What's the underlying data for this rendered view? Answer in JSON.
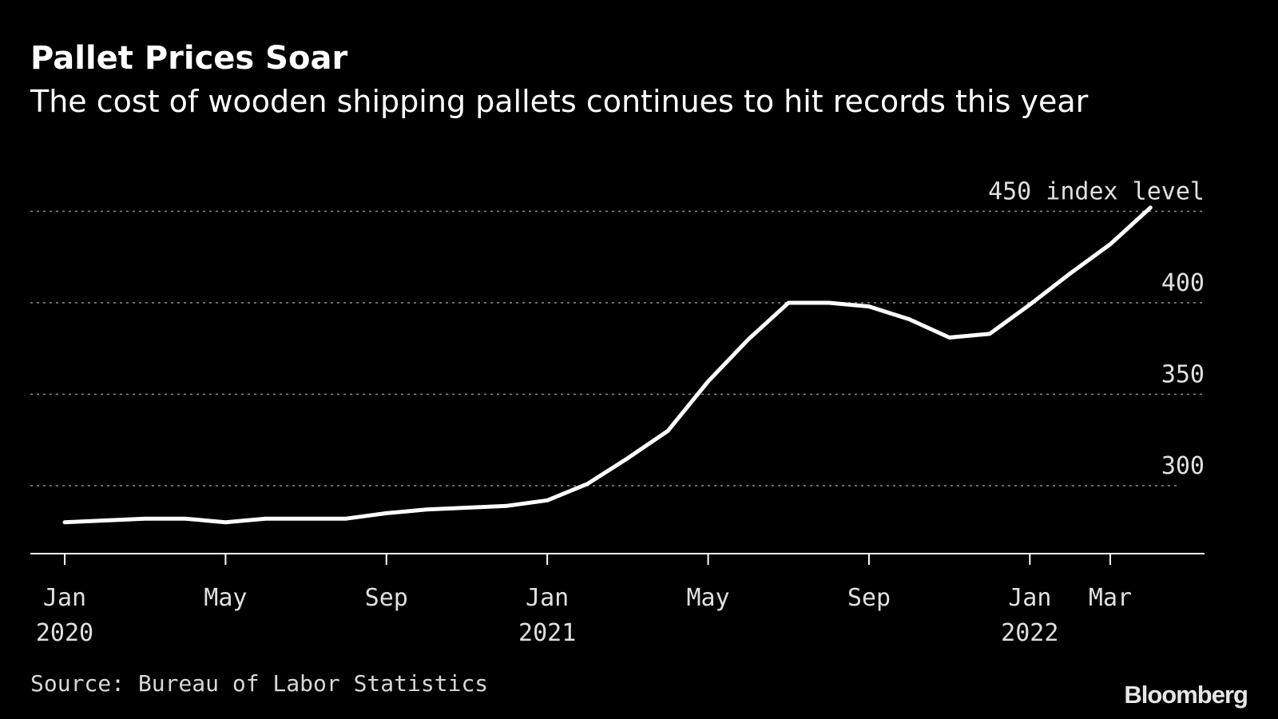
{
  "header": {
    "title": "Pallet Prices Soar",
    "subtitle": "The cost of wooden shipping pallets continues to hit records this year"
  },
  "footer": {
    "source": "Source: Bureau of Labor Statistics",
    "logo": "Bloomberg"
  },
  "colors": {
    "background": "#000000",
    "line": "#ffffff",
    "grid": "#8c8c8c",
    "text": "#e0e0e0"
  },
  "chart_data": {
    "type": "line",
    "title": "Pallet Prices Soar",
    "subtitle": "The cost of wooden shipping pallets continues to hit records this year",
    "ylabel_unit": "index level",
    "y_axis_side": "right",
    "grid": true,
    "grid_style": "dotted",
    "x_ticks": [
      {
        "label": "Jan",
        "year": "2020"
      },
      {
        "label": "May",
        "year": ""
      },
      {
        "label": "Sep",
        "year": ""
      },
      {
        "label": "Jan",
        "year": "2021"
      },
      {
        "label": "May",
        "year": ""
      },
      {
        "label": "Sep",
        "year": ""
      },
      {
        "label": "Jan",
        "year": "2022"
      },
      {
        "label": "Mar",
        "year": ""
      }
    ],
    "y_ticks": [
      300,
      350,
      400,
      450
    ],
    "ylim": [
      260,
      455
    ],
    "series": [
      {
        "x": [
          "2020-01",
          "2020-02",
          "2020-03",
          "2020-04",
          "2020-05",
          "2020-06",
          "2020-07",
          "2020-08",
          "2020-09",
          "2020-10",
          "2020-11",
          "2020-12",
          "2021-01",
          "2021-02",
          "2021-03",
          "2021-04",
          "2021-05",
          "2021-06",
          "2021-07",
          "2021-08",
          "2021-09",
          "2021-10",
          "2021-11",
          "2021-12",
          "2022-01",
          "2022-02",
          "2022-03",
          "2022-04"
        ],
        "values": [
          280,
          281,
          282,
          282,
          280,
          282,
          282,
          282,
          285,
          287,
          288,
          289,
          292,
          301,
          315,
          330,
          357,
          380,
          400,
          400,
          398,
          391,
          381,
          383,
          399,
          416,
          432,
          452
        ]
      }
    ]
  }
}
